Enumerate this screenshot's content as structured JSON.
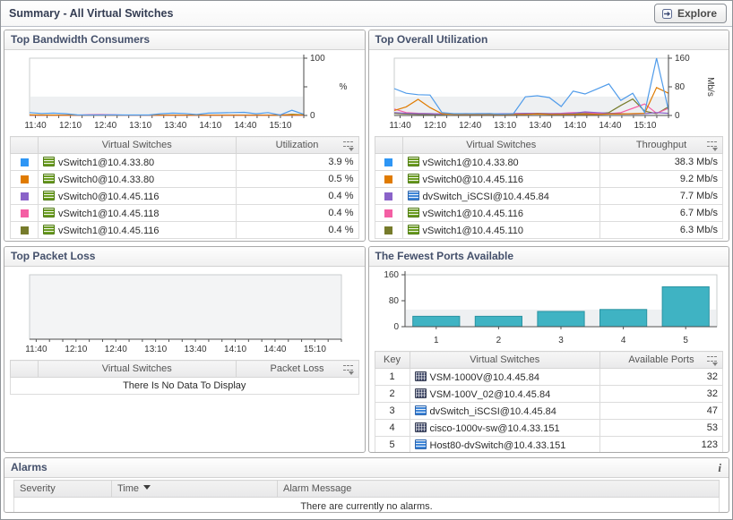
{
  "window": {
    "title": "Summary - All Virtual Switches",
    "explore_label": "Explore"
  },
  "panels": {
    "bandwidth": {
      "title": "Top Bandwidth Consumers",
      "columns": {
        "name": "Virtual Switches",
        "value": "Utilization"
      },
      "rows": [
        {
          "swatch": "#2e96f5",
          "icon": "vswitch-standard",
          "name": "vSwitch1@10.4.33.80",
          "value": "3.9 %"
        },
        {
          "swatch": "#e07b00",
          "icon": "vswitch-standard",
          "name": "vSwitch0@10.4.33.80",
          "value": "0.5 %"
        },
        {
          "swatch": "#8a63c9",
          "icon": "vswitch-standard",
          "name": "vSwitch0@10.4.45.116",
          "value": "0.4 %"
        },
        {
          "swatch": "#f45fa4",
          "icon": "vswitch-standard",
          "name": "vSwitch1@10.4.45.118",
          "value": "0.4 %"
        },
        {
          "swatch": "#767b2b",
          "icon": "vswitch-standard",
          "name": "vSwitch1@10.4.45.116",
          "value": "0.4 %"
        }
      ]
    },
    "utilization": {
      "title": "Top Overall Utilization",
      "columns": {
        "name": "Virtual Switches",
        "value": "Throughput"
      },
      "rows": [
        {
          "swatch": "#2e96f5",
          "icon": "vswitch-standard",
          "name": "vSwitch1@10.4.33.80",
          "value": "38.3 Mb/s"
        },
        {
          "swatch": "#e07b00",
          "icon": "vswitch-standard",
          "name": "vSwitch0@10.4.45.116",
          "value": "9.2 Mb/s"
        },
        {
          "swatch": "#8a63c9",
          "icon": "vswitch-distributed",
          "name": "dvSwitch_iSCSI@10.4.45.84",
          "value": "7.7 Mb/s"
        },
        {
          "swatch": "#f45fa4",
          "icon": "vswitch-standard",
          "name": "vSwitch1@10.4.45.116",
          "value": "6.7 Mb/s"
        },
        {
          "swatch": "#767b2b",
          "icon": "vswitch-standard",
          "name": "vSwitch1@10.4.45.110",
          "value": "6.3 Mb/s"
        }
      ]
    },
    "packetloss": {
      "title": "Top Packet Loss",
      "columns": {
        "name": "Virtual Switches",
        "value": "Packet Loss"
      },
      "empty_message": "There Is No Data To Display"
    },
    "ports": {
      "title": "The Fewest Ports Available",
      "columns": {
        "key": "Key",
        "name": "Virtual Switches",
        "value": "Available Ports"
      },
      "rows": [
        {
          "key": "1",
          "icon": "vswitch-cisco",
          "name": "VSM-1000V@10.4.45.84",
          "value": "32"
        },
        {
          "key": "2",
          "icon": "vswitch-cisco",
          "name": "VSM-100V_02@10.4.45.84",
          "value": "32"
        },
        {
          "key": "3",
          "icon": "vswitch-distributed",
          "name": "dvSwitch_iSCSI@10.4.45.84",
          "value": "47"
        },
        {
          "key": "4",
          "icon": "vswitch-cisco",
          "name": "cisco-1000v-sw@10.4.33.151",
          "value": "53"
        },
        {
          "key": "5",
          "icon": "vswitch-distributed",
          "name": "Host80-dvSwitch@10.4.33.151",
          "value": "123"
        }
      ]
    }
  },
  "alarms": {
    "title": "Alarms",
    "info_icon": "i",
    "columns": {
      "severity": "Severity",
      "time": "Time",
      "message": "Alarm Message"
    },
    "empty_message": "There are currently no alarms."
  },
  "chart_data": [
    {
      "id": "bandwidth",
      "type": "line",
      "title": "Top Bandwidth Consumers",
      "xlabel": "",
      "ylabel": "%",
      "ylim": [
        0,
        100
      ],
      "yticks": [
        0,
        50,
        100
      ],
      "ytick_labels": [
        "0",
        "",
        "100"
      ],
      "yaxis_side": "right",
      "x_labels": [
        "11:40",
        "12:10",
        "12:40",
        "13:10",
        "13:40",
        "14:10",
        "14:40",
        "15:10"
      ],
      "series": [
        {
          "name": "vSwitch1@10.4.33.80",
          "color": "#4f9bea",
          "values": [
            5,
            3.5,
            4,
            3.2,
            1,
            0.8,
            0.8,
            1,
            0.8,
            0.8,
            0.8,
            3,
            4,
            3.5,
            1.5,
            4,
            4.5,
            5,
            5.5,
            3,
            5,
            0.8,
            9,
            2
          ]
        },
        {
          "name": "vSwitch0@10.4.33.80",
          "color": "#e07b00",
          "values": [
            1,
            0.8,
            0.6,
            0.5,
            0.5,
            0.5,
            0.5,
            0.5,
            0.5,
            0.5,
            0.5,
            0.5,
            0.5,
            0.5,
            0.5,
            0.5,
            0.5,
            0.5,
            0.5,
            0.5,
            0.5,
            0.5,
            1,
            0.8
          ]
        },
        {
          "name": "vSwitch0@10.4.45.116",
          "color": "#8a63c9",
          "values": [
            0.4,
            0.4,
            0.4,
            0.4,
            0.4,
            0.4,
            0.4,
            0.4,
            0.4,
            0.4,
            0.4,
            0.4,
            0.4,
            0.4,
            0.4,
            0.4,
            0.4,
            0.4,
            0.4,
            0.4,
            0.4,
            0.4,
            0.5,
            0.4
          ]
        },
        {
          "name": "vSwitch1@10.4.45.118",
          "color": "#f45fa4",
          "values": [
            0.6,
            0.5,
            0.4,
            0.4,
            0.4,
            1.4,
            1.5,
            1.2,
            0.5,
            0.4,
            0.4,
            0.4,
            0.4,
            0.4,
            0.4,
            0.4,
            0.4,
            0.4,
            0.4,
            0.4,
            0.4,
            1.2,
            0.6,
            0.5
          ]
        },
        {
          "name": "vSwitch1@10.4.45.116",
          "color": "#767b2b",
          "values": [
            0.4,
            0.4,
            0.4,
            0.4,
            0.4,
            0.4,
            0.4,
            0.4,
            0.4,
            0.4,
            0.4,
            0.4,
            0.4,
            0.4,
            0.4,
            0.4,
            0.4,
            0.4,
            0.4,
            0.4,
            0.4,
            0.5,
            2,
            1
          ]
        }
      ]
    },
    {
      "id": "utilization",
      "type": "line",
      "title": "Top Overall Utilization",
      "xlabel": "",
      "ylabel": "Mb/s",
      "ylim": [
        0,
        160
      ],
      "yticks": [
        0,
        80,
        160
      ],
      "ytick_labels": [
        "0",
        "80",
        "160"
      ],
      "yaxis_side": "right",
      "x_labels": [
        "11:40",
        "12:10",
        "12:40",
        "13:10",
        "13:40",
        "14:10",
        "14:40",
        "15:10"
      ],
      "series": [
        {
          "name": "vSwitch1@10.4.33.80",
          "color": "#4f9bea",
          "values": [
            75,
            62,
            58,
            57,
            8,
            5,
            5,
            5,
            5,
            4,
            5,
            52,
            55,
            50,
            25,
            68,
            60,
            74,
            88,
            42,
            62,
            8,
            160,
            15
          ]
        },
        {
          "name": "vSwitch0@10.4.45.116",
          "color": "#e07b00",
          "values": [
            14,
            24,
            45,
            22,
            5,
            3,
            3,
            3,
            3,
            3,
            3,
            3,
            4,
            3,
            3,
            3,
            3,
            3,
            4,
            4,
            5,
            6,
            78,
            62
          ]
        },
        {
          "name": "dvSwitch_iSCSI@10.4.45.84",
          "color": "#8a63c9",
          "values": [
            8,
            6,
            5,
            5,
            4,
            4,
            4,
            5,
            5,
            4,
            5,
            6,
            5,
            5,
            5,
            6,
            10,
            8,
            6,
            5,
            4,
            5,
            8,
            6
          ]
        },
        {
          "name": "vSwitch1@10.4.45.116",
          "color": "#f45fa4",
          "values": [
            18,
            8,
            6,
            5,
            4,
            4,
            5,
            4,
            4,
            5,
            5,
            6,
            5,
            5,
            6,
            8,
            8,
            6,
            5,
            8,
            20,
            32,
            6,
            20
          ]
        },
        {
          "name": "vSwitch1@10.4.45.110",
          "color": "#767b2b",
          "values": [
            6,
            4,
            3,
            3,
            3,
            4,
            4,
            4,
            5,
            4,
            4,
            5,
            6,
            5,
            4,
            4,
            5,
            5,
            8,
            28,
            46,
            12,
            5,
            24
          ]
        }
      ]
    },
    {
      "id": "packetloss",
      "type": "line",
      "title": "Top Packet Loss",
      "xlabel": "",
      "ylabel": "",
      "ylim": [
        0,
        1
      ],
      "x_labels": [
        "11:40",
        "12:10",
        "12:40",
        "13:10",
        "13:40",
        "14:10",
        "14:40",
        "15:10"
      ],
      "series": [],
      "note": "no data"
    },
    {
      "id": "ports",
      "type": "bar",
      "title": "The Fewest Ports Available",
      "xlabel": "",
      "ylabel": "",
      "ylim": [
        0,
        160
      ],
      "yticks": [
        0,
        80,
        160
      ],
      "categories": [
        "1",
        "2",
        "3",
        "4",
        "5"
      ],
      "values": [
        32,
        32,
        47,
        53,
        123
      ],
      "bar_color": "#3fb3c3",
      "bar_border": "#2b93a2"
    }
  ]
}
